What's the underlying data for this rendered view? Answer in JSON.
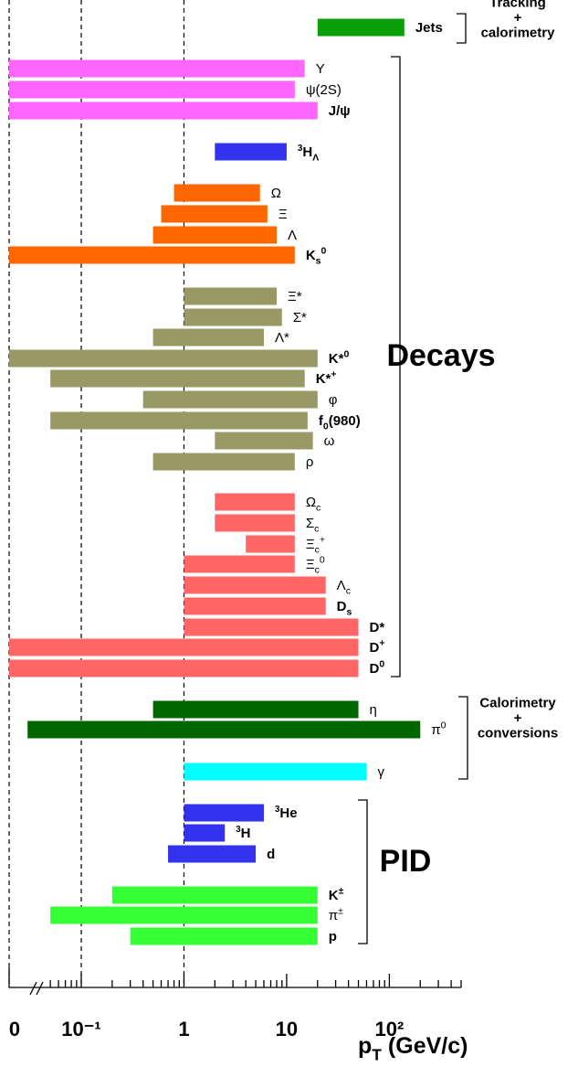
{
  "chart_data": {
    "type": "range-bar",
    "xscale": "log",
    "xlim": [
      0,
      500
    ],
    "xticks": [
      0,
      {
        "value": 0.1,
        "label": "10⁻¹"
      },
      1,
      10,
      {
        "value": 100,
        "label": "10²"
      }
    ],
    "minor_xticks": [
      0.05,
      0.06,
      0.07,
      0.08,
      0.09,
      0.2,
      0.3,
      0.4,
      0.5,
      0.6,
      0.7,
      0.8,
      0.9,
      2,
      3,
      4,
      5,
      6,
      7,
      8,
      9,
      20,
      30,
      40,
      50,
      60,
      70,
      80,
      90,
      200,
      300,
      400,
      500
    ],
    "dashed_lines": [
      0,
      0.1,
      1
    ],
    "x_label": {
      "name": "p",
      "sub": "T",
      "post": " (GeV/c)"
    },
    "series": [
      {
        "name": "Jets",
        "bold": true,
        "color": "#0a9e0a",
        "values": [
          20,
          140
        ]
      },
      {
        "name": "Υ",
        "color": "#ff66ff",
        "values": [
          0,
          15
        ]
      },
      {
        "name": "ψ(2S)",
        "color": "#ff66ff",
        "values": [
          0,
          12
        ]
      },
      {
        "name": "J/ψ",
        "bold": true,
        "color": "#ff66ff",
        "values": [
          0,
          20
        ]
      },
      {
        "pre": "3",
        "name": "H",
        "sub": "Λ",
        "bold": true,
        "color": "#3333ee",
        "values": [
          2,
          10
        ]
      },
      {
        "name": "Ω",
        "color": "#ff6600",
        "values": [
          0.8,
          5.5
        ]
      },
      {
        "name": "Ξ",
        "color": "#ff6600",
        "values": [
          0.6,
          6.5
        ]
      },
      {
        "name": "Λ",
        "color": "#ff6600",
        "values": [
          0.5,
          8
        ]
      },
      {
        "name": "K",
        "sub": "s",
        "sup": "0",
        "bold": true,
        "color": "#ff6600",
        "values": [
          0,
          12
        ]
      },
      {
        "name": "Ξ*",
        "color": "#999966",
        "values": [
          1,
          8
        ]
      },
      {
        "name": "Σ*",
        "color": "#999966",
        "values": [
          1,
          9
        ]
      },
      {
        "name": "Λ*",
        "color": "#999966",
        "values": [
          0.5,
          6
        ]
      },
      {
        "name": "K*",
        "sup": "0",
        "bold": true,
        "color": "#999966",
        "values": [
          0,
          20
        ]
      },
      {
        "name": "K*",
        "sup": "+",
        "bold": true,
        "color": "#999966",
        "values": [
          0.05,
          15
        ]
      },
      {
        "name": "φ",
        "color": "#999966",
        "values": [
          0.4,
          20
        ]
      },
      {
        "name": "f",
        "sub": "0",
        "post": "(980)",
        "bold": true,
        "color": "#999966",
        "values": [
          0.05,
          16
        ]
      },
      {
        "name": "ω",
        "color": "#999966",
        "values": [
          2,
          18
        ]
      },
      {
        "name": "ρ",
        "color": "#999966",
        "values": [
          0.5,
          12
        ]
      },
      {
        "name": "Ω",
        "sub": "c",
        "color": "#ff6666",
        "values": [
          2,
          12
        ]
      },
      {
        "name": "Σ",
        "sub": "c",
        "color": "#ff6666",
        "values": [
          2,
          12
        ]
      },
      {
        "name": "Ξ",
        "sub": "c",
        "sup": "+",
        "color": "#ff6666",
        "values": [
          4,
          12
        ]
      },
      {
        "name": "Ξ",
        "sub": "c",
        "sup": "0",
        "color": "#ff6666",
        "values": [
          1,
          12
        ]
      },
      {
        "name": "Λ",
        "sub": "c",
        "color": "#ff6666",
        "values": [
          1,
          24
        ]
      },
      {
        "name": "D",
        "sub": "s",
        "bold": true,
        "color": "#ff6666",
        "values": [
          1,
          24
        ]
      },
      {
        "name": "D*",
        "bold": true,
        "color": "#ff6666",
        "values": [
          1,
          50
        ]
      },
      {
        "name": "D",
        "sup": "+",
        "bold": true,
        "color": "#ff6666",
        "values": [
          0,
          50
        ]
      },
      {
        "name": "D",
        "sup": "0",
        "bold": true,
        "color": "#ff6666",
        "values": [
          0,
          50
        ]
      },
      {
        "name": "η",
        "color": "#006600",
        "values": [
          0.5,
          50
        ]
      },
      {
        "name": "π",
        "sup": "0",
        "color": "#006600",
        "values": [
          0.03,
          200
        ]
      },
      {
        "name": "γ",
        "color": "#00ffff",
        "values": [
          1,
          60
        ]
      },
      {
        "pre": "3",
        "name": "He",
        "bold": true,
        "color": "#3333ee",
        "values": [
          1,
          6
        ]
      },
      {
        "pre": "3",
        "name": "H",
        "bold": true,
        "color": "#3333ee",
        "values": [
          1,
          2.5
        ]
      },
      {
        "name": "d",
        "bold": true,
        "color": "#3333ee",
        "values": [
          0.7,
          5
        ]
      },
      {
        "name": "K",
        "sup": "±",
        "bold": true,
        "color": "#33ff33",
        "values": [
          0.2,
          20
        ]
      },
      {
        "name": "π",
        "sup": "±",
        "color": "#33ff33",
        "values": [
          0.05,
          20
        ]
      },
      {
        "name": "p",
        "bold": true,
        "color": "#33ff33",
        "values": [
          0.3,
          20
        ]
      }
    ],
    "groups": [
      {
        "label": [
          "Tracking",
          "+",
          "calorimetry"
        ]
      },
      {
        "label": [
          "Decays"
        ]
      },
      {
        "label": [
          "Calorimetry",
          "+",
          "conversions"
        ]
      },
      {
        "label": [
          "PID"
        ]
      }
    ]
  }
}
